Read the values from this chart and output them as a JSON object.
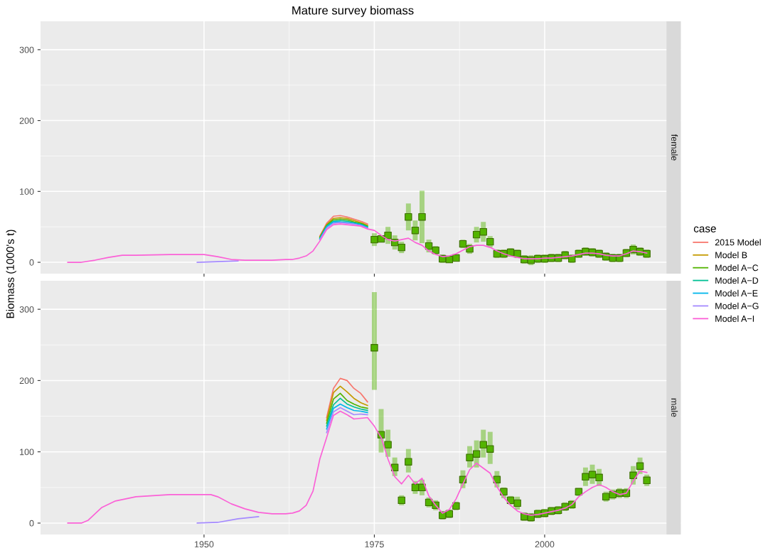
{
  "chart_data": [
    {
      "type": "line",
      "title": "Mature survey biomass",
      "subtitle": "female",
      "ylabel": "Biomass (1000's t)",
      "legend_title": "case",
      "legend": "right",
      "grid": true,
      "tick_labels": "y",
      "xlim": [
        1926,
        2020
      ],
      "ylim": [
        -16,
        340
      ],
      "xticks": [
        1950,
        1975,
        2000
      ],
      "yticks": [
        0,
        100,
        200,
        300
      ],
      "series": [
        {
          "name": "2015 Model",
          "color": "#f8766d",
          "x": [
            1967,
            1968,
            1969,
            1970,
            1971,
            1972,
            1973,
            1974
          ],
          "values": [
            37,
            55,
            65,
            66,
            64,
            61,
            58,
            54
          ]
        },
        {
          "name": "Model B",
          "color": "#c49a00",
          "x": [
            1967,
            1968,
            1969,
            1970,
            1971,
            1972,
            1973,
            1974
          ],
          "values": [
            36,
            53,
            62,
            63,
            62,
            59,
            56,
            52
          ]
        },
        {
          "name": "Model A−C",
          "color": "#53b400",
          "x": [
            1967,
            1968,
            1969,
            1970,
            1971,
            1972,
            1973,
            1974
          ],
          "values": [
            35,
            52,
            60,
            61,
            60,
            57,
            55,
            51
          ]
        },
        {
          "name": "Model A−D",
          "color": "#00c094",
          "x": [
            1967,
            1968,
            1969,
            1970,
            1971,
            1972,
            1973,
            1974
          ],
          "values": [
            34,
            51,
            58,
            59,
            58,
            56,
            54,
            50
          ]
        },
        {
          "name": "Model A−E",
          "color": "#00b6eb",
          "x": [
            1967,
            1968,
            1969,
            1970,
            1971,
            1972,
            1973,
            1974
          ],
          "values": [
            33,
            50,
            57,
            57,
            56,
            55,
            53,
            49
          ]
        },
        {
          "name": "Model A−G",
          "color": "#a58aff",
          "x": [
            1949,
            1952,
            1955,
            1958,
            1963,
            1967,
            1968,
            1969,
            1970,
            1971,
            1972,
            1973,
            1974
          ],
          "values": [
            0,
            1,
            2,
            null,
            null,
            32,
            48,
            55,
            56,
            55,
            54,
            52,
            48
          ]
        },
        {
          "name": "Model A−I",
          "color": "#fb61d7",
          "x": [
            1930,
            1932,
            1934,
            1936,
            1938,
            1940,
            1945,
            1950,
            1952,
            1954,
            1956,
            1958,
            1960,
            1962,
            1963,
            1964,
            1965,
            1966,
            1967,
            1968,
            1969,
            1970,
            1971,
            1972,
            1973,
            1974,
            1975,
            1976,
            1977,
            1978,
            1979,
            1980,
            1981,
            1982,
            1983,
            1984,
            1985,
            1986,
            1987,
            1988,
            1989,
            1990,
            1991,
            1992,
            1993,
            1994,
            1995,
            1996,
            1997,
            1998,
            1999,
            2000,
            2001,
            2002,
            2003,
            2004,
            2005,
            2006,
            2007,
            2008,
            2009,
            2010,
            2011,
            2012,
            2013,
            2014,
            2015
          ],
          "values": [
            0,
            0,
            3,
            7,
            10,
            10,
            11,
            11,
            8,
            4,
            3,
            3,
            3,
            4,
            4,
            6,
            9,
            16,
            30,
            46,
            53,
            54,
            53,
            52,
            51,
            47,
            45,
            38,
            32,
            30,
            32,
            34,
            28,
            24,
            16,
            11,
            8,
            9,
            12,
            17,
            22,
            24,
            24,
            21,
            16,
            12,
            9,
            7,
            5,
            5,
            5,
            6,
            6,
            7,
            8,
            9,
            11,
            13,
            13,
            12,
            10,
            9,
            9,
            12,
            16,
            15,
            13
          ]
        },
        {
          "type": "scatter",
          "marker": "square",
          "color": "#53b400",
          "x": [
            1975,
            1976,
            1977,
            1978,
            1979,
            1980,
            1981,
            1982,
            1983,
            1984,
            1985,
            1986,
            1987,
            1988,
            1989,
            1990,
            1991,
            1992,
            1993,
            1994,
            1995,
            1996,
            1997,
            1998,
            1999,
            2000,
            2001,
            2002,
            2003,
            2004,
            2005,
            2006,
            2007,
            2008,
            2009,
            2010,
            2011,
            2012,
            2013,
            2014,
            2015
          ],
          "values": [
            32,
            33,
            38,
            28,
            21,
            64,
            45,
            64,
            23,
            17,
            5,
            4,
            6,
            26,
            19,
            39,
            43,
            29,
            12,
            12,
            14,
            12,
            4,
            3,
            5,
            5,
            6,
            6,
            10,
            5,
            12,
            15,
            14,
            12,
            8,
            6,
            6,
            13,
            18,
            15,
            12
          ],
          "errors": [
            9,
            5,
            12,
            10,
            8,
            19,
            14,
            37,
            9,
            6,
            6,
            5,
            5,
            6,
            7,
            11,
            14,
            8,
            6,
            6,
            6,
            6,
            6,
            7,
            6,
            6,
            6,
            6,
            6,
            6,
            6,
            6,
            6,
            6,
            6,
            6,
            6,
            6,
            7,
            6,
            6
          ]
        }
      ]
    },
    {
      "type": "line",
      "subtitle": "male",
      "grid": true,
      "xlim": [
        1926,
        2020
      ],
      "ylim": [
        -16,
        340
      ],
      "xticks": [
        1950,
        1975,
        2000
      ],
      "yticks": [
        0,
        100,
        200,
        300
      ],
      "series": [
        {
          "name": "2015 Model",
          "color": "#f8766d",
          "x": [
            1968,
            1969,
            1970,
            1971,
            1972,
            1973,
            1974
          ],
          "values": [
            148,
            189,
            203,
            200,
            189,
            182,
            170
          ]
        },
        {
          "name": "Model B",
          "color": "#c49a00",
          "x": [
            1968,
            1969,
            1970,
            1971,
            1972,
            1973,
            1974
          ],
          "values": [
            144,
            183,
            192,
            184,
            175,
            169,
            165
          ]
        },
        {
          "name": "Model A−C",
          "color": "#53b400",
          "x": [
            1968,
            1969,
            1970,
            1971,
            1972,
            1973,
            1974
          ],
          "values": [
            140,
            174,
            182,
            172,
            167,
            163,
            161
          ]
        },
        {
          "name": "Model A−D",
          "color": "#00c094",
          "x": [
            1968,
            1969,
            1970,
            1971,
            1972,
            1973,
            1974
          ],
          "values": [
            136,
            166,
            175,
            167,
            163,
            160,
            158
          ]
        },
        {
          "name": "Model A−E",
          "color": "#00b6eb",
          "x": [
            1968,
            1969,
            1970,
            1971,
            1972,
            1973,
            1974
          ],
          "values": [
            132,
            161,
            167,
            162,
            158,
            157,
            155
          ]
        },
        {
          "name": "Model A−G",
          "color": "#a58aff",
          "x": [
            1949,
            1952,
            1955,
            1958,
            1963,
            1968,
            1969,
            1970,
            1971,
            1972,
            1973,
            1974
          ],
          "values": [
            0,
            1,
            6,
            9,
            null,
            127,
            156,
            162,
            157,
            152,
            153,
            152
          ]
        },
        {
          "name": "Model A−I",
          "color": "#fb61d7",
          "x": [
            1930,
            1932,
            1933,
            1935,
            1937,
            1940,
            1945,
            1950,
            1951,
            1952,
            1954,
            1956,
            1958,
            1960,
            1962,
            1963,
            1964,
            1965,
            1966,
            1967,
            1968,
            1969,
            1970,
            1971,
            1972,
            1973,
            1974,
            1975,
            1976,
            1977,
            1978,
            1979,
            1980,
            1981,
            1982,
            1983,
            1984,
            1985,
            1986,
            1987,
            1988,
            1989,
            1990,
            1991,
            1992,
            1993,
            1994,
            1995,
            1996,
            1997,
            1998,
            1999,
            2000,
            2001,
            2002,
            2003,
            2004,
            2005,
            2006,
            2007,
            2008,
            2009,
            2010,
            2011,
            2012,
            2013,
            2014,
            2015
          ],
          "values": [
            0,
            0,
            4,
            22,
            31,
            37,
            40,
            40,
            40,
            37,
            27,
            20,
            15,
            13,
            13,
            14,
            17,
            25,
            45,
            90,
            120,
            151,
            157,
            152,
            146,
            147,
            148,
            136,
            120,
            90,
            65,
            55,
            67,
            55,
            63,
            38,
            25,
            14,
            19,
            34,
            55,
            75,
            84,
            77,
            70,
            51,
            36,
            25,
            17,
            13,
            11,
            12,
            14,
            16,
            18,
            21,
            26,
            37,
            44,
            50,
            54,
            50,
            44,
            40,
            42,
            59,
            73,
            71
          ]
        },
        {
          "type": "scatter",
          "marker": "square",
          "color": "#53b400",
          "x": [
            1975,
            1976,
            1977,
            1978,
            1979,
            1980,
            1981,
            1982,
            1983,
            1984,
            1985,
            1986,
            1987,
            1988,
            1989,
            1990,
            1991,
            1992,
            1993,
            1994,
            1995,
            1996,
            1997,
            1998,
            1999,
            2000,
            2001,
            2002,
            2003,
            2004,
            2005,
            2006,
            2007,
            2008,
            2009,
            2010,
            2011,
            2012,
            2013,
            2014,
            2015
          ],
          "values": [
            246,
            124,
            110,
            78,
            32,
            86,
            50,
            50,
            29,
            25,
            11,
            13,
            24,
            61,
            92,
            97,
            110,
            104,
            61,
            44,
            32,
            28,
            9,
            8,
            13,
            14,
            17,
            18,
            23,
            26,
            44,
            65,
            68,
            64,
            37,
            40,
            42,
            42,
            67,
            80,
            60
          ],
          "errors": [
            [
              187,
              324
            ],
            [
              99,
              160
            ],
            [
              93,
              131
            ],
            [
              66,
              92
            ],
            7,
            [
              71,
              104
            ],
            9,
            11,
            7,
            7,
            6,
            6,
            6,
            [
              49,
              74
            ],
            [
              78,
              108
            ],
            [
              78,
              116
            ],
            [
              92,
              131
            ],
            [
              83,
              128
            ],
            [
              50,
              73
            ],
            [
              35,
              50
            ],
            6,
            9,
            6,
            6,
            6,
            6,
            6,
            6,
            6,
            6,
            [
              38,
              49
            ],
            [
              52,
              78
            ],
            [
              55,
              82
            ],
            [
              52,
              76
            ],
            7,
            7,
            7,
            7,
            [
              54,
              80
            ],
            [
              69,
              92
            ],
            [
              52,
              68
            ]
          ]
        }
      ]
    }
  ]
}
